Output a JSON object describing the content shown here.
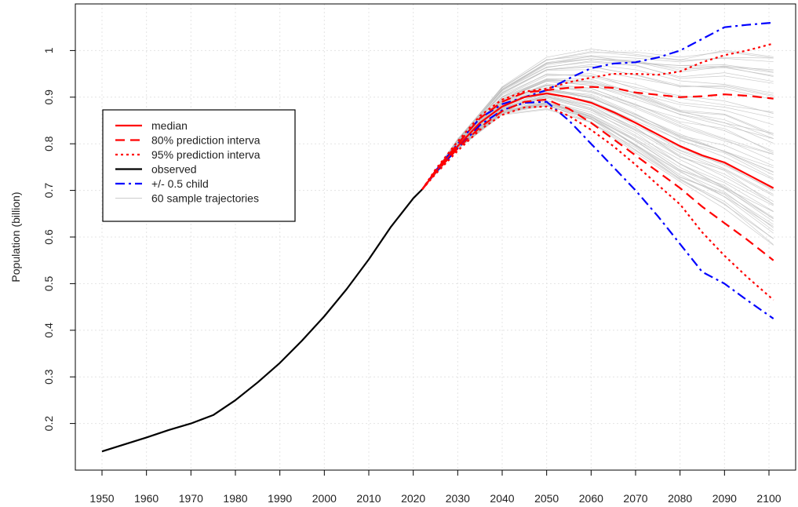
{
  "chart_data": {
    "type": "line",
    "title": "",
    "xlabel": "",
    "ylabel": "Population (billion)",
    "xlim": [
      1944,
      2106
    ],
    "ylim": [
      0.1,
      1.1
    ],
    "x_ticks": [
      1950,
      1960,
      1970,
      1980,
      1990,
      2000,
      2010,
      2020,
      2030,
      2040,
      2050,
      2060,
      2070,
      2080,
      2090,
      2100
    ],
    "y_ticks": [
      0.2,
      0.3,
      0.4,
      0.5,
      0.6,
      0.7,
      0.8,
      0.9,
      1
    ],
    "y_tick_labels": [
      "0.2",
      "0.3",
      "0.4",
      "0.5",
      "0.6",
      "0.7",
      "0.8",
      "0.9",
      "1"
    ],
    "grid": true,
    "legend_position": "upper-left",
    "legend": [
      {
        "label": "median",
        "color": "#ff0000",
        "style": "solid"
      },
      {
        "label": "80% prediction interva",
        "color": "#ff0000",
        "style": "dashed"
      },
      {
        "label": "95% prediction interva",
        "color": "#ff0000",
        "style": "dotted"
      },
      {
        "label": "observed",
        "color": "#000000",
        "style": "solid"
      },
      {
        "label": "+/- 0.5 child",
        "color": "#0000ff",
        "style": "dashdot"
      },
      {
        "label": "60 sample trajectories",
        "color": "#bbbbbb",
        "style": "thin"
      }
    ],
    "series": [
      {
        "key": "observed",
        "color": "#000000",
        "style": "solid",
        "x": [
          1950,
          1955,
          1960,
          1965,
          1970,
          1975,
          1980,
          1985,
          1990,
          1995,
          2000,
          2005,
          2010,
          2015,
          2020,
          2022
        ],
        "y": [
          0.14,
          0.155,
          0.17,
          0.186,
          0.2,
          0.218,
          0.25,
          0.288,
          0.33,
          0.378,
          0.43,
          0.488,
          0.552,
          0.622,
          0.683,
          0.702
        ]
      },
      {
        "key": "median",
        "color": "#ff0000",
        "style": "solid",
        "x": [
          2022,
          2025,
          2030,
          2035,
          2040,
          2045,
          2050,
          2055,
          2060,
          2065,
          2070,
          2075,
          2080,
          2085,
          2090,
          2095,
          2101
        ],
        "y": [
          0.702,
          0.74,
          0.795,
          0.845,
          0.88,
          0.9,
          0.908,
          0.9,
          0.888,
          0.868,
          0.845,
          0.82,
          0.795,
          0.775,
          0.76,
          0.735,
          0.705
        ]
      },
      {
        "key": "pi80_upper",
        "color": "#ff0000",
        "style": "dashed",
        "x": [
          2022,
          2025,
          2030,
          2035,
          2040,
          2045,
          2050,
          2055,
          2060,
          2065,
          2070,
          2075,
          2080,
          2085,
          2090,
          2095,
          2101
        ],
        "y": [
          0.702,
          0.742,
          0.8,
          0.855,
          0.89,
          0.91,
          0.915,
          0.92,
          0.922,
          0.92,
          0.91,
          0.905,
          0.9,
          0.902,
          0.906,
          0.903,
          0.897
        ]
      },
      {
        "key": "pi80_lower",
        "color": "#ff0000",
        "style": "dashed",
        "x": [
          2022,
          2025,
          2030,
          2035,
          2040,
          2045,
          2050,
          2055,
          2060,
          2065,
          2070,
          2075,
          2080,
          2085,
          2090,
          2095,
          2101
        ],
        "y": [
          0.702,
          0.738,
          0.79,
          0.835,
          0.87,
          0.89,
          0.895,
          0.875,
          0.845,
          0.81,
          0.775,
          0.74,
          0.705,
          0.665,
          0.63,
          0.595,
          0.55
        ]
      },
      {
        "key": "pi95_upper",
        "color": "#ff0000",
        "style": "dotted",
        "x": [
          2022,
          2025,
          2030,
          2035,
          2040,
          2045,
          2050,
          2055,
          2060,
          2065,
          2070,
          2075,
          2080,
          2085,
          2090,
          2095,
          2101
        ],
        "y": [
          0.702,
          0.745,
          0.805,
          0.86,
          0.895,
          0.912,
          0.918,
          0.932,
          0.942,
          0.95,
          0.95,
          0.948,
          0.955,
          0.975,
          0.99,
          1.0,
          1.015
        ]
      },
      {
        "key": "pi95_lower",
        "color": "#ff0000",
        "style": "dotted",
        "x": [
          2022,
          2025,
          2030,
          2035,
          2040,
          2045,
          2050,
          2055,
          2060,
          2065,
          2070,
          2075,
          2080,
          2085,
          2090,
          2095,
          2101
        ],
        "y": [
          0.702,
          0.735,
          0.785,
          0.83,
          0.862,
          0.878,
          0.88,
          0.86,
          0.83,
          0.795,
          0.755,
          0.712,
          0.67,
          0.61,
          0.56,
          0.515,
          0.465
        ]
      },
      {
        "key": "plus_half_child",
        "color": "#0000ff",
        "style": "dashdot",
        "x": [
          2022,
          2025,
          2030,
          2035,
          2040,
          2045,
          2050,
          2055,
          2060,
          2065,
          2070,
          2075,
          2080,
          2085,
          2090,
          2095,
          2101
        ],
        "y": [
          0.702,
          0.742,
          0.8,
          0.855,
          0.885,
          0.9,
          0.915,
          0.94,
          0.962,
          0.972,
          0.975,
          0.985,
          1.0,
          1.025,
          1.05,
          1.055,
          1.06
        ]
      },
      {
        "key": "minus_half_child",
        "color": "#0000ff",
        "style": "dashdot",
        "x": [
          2022,
          2025,
          2030,
          2035,
          2040,
          2045,
          2050,
          2055,
          2060,
          2065,
          2070,
          2075,
          2080,
          2085,
          2090,
          2095,
          2101
        ],
        "y": [
          0.702,
          0.738,
          0.79,
          0.84,
          0.872,
          0.888,
          0.89,
          0.85,
          0.8,
          0.75,
          0.7,
          0.645,
          0.585,
          0.525,
          0.5,
          0.465,
          0.425
        ]
      }
    ],
    "sample_trajectories": {
      "count": 60,
      "color": "#bbbbbb",
      "x": [
        2022,
        2030,
        2040,
        2050,
        2060,
        2070,
        2080,
        2090,
        2101
      ],
      "y_end_range": [
        0.58,
        1.0
      ]
    }
  }
}
